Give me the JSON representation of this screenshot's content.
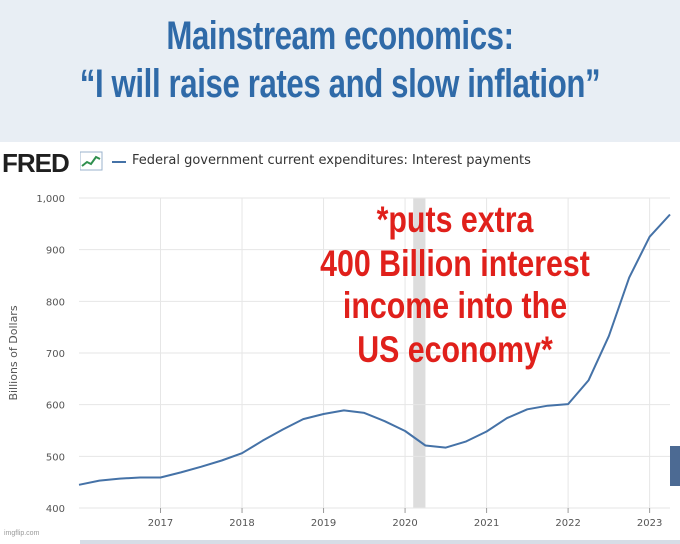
{
  "meme": {
    "line1": "Mainstream economics:",
    "line2": "“I will raise rates and slow inflation”",
    "overlay": [
      "*puts extra",
      "400 Billion interest",
      "income into the",
      "US economy*"
    ],
    "overlay_color": "#e0201b",
    "title_color": "#2f6aa8",
    "watermark": "imgflip.com"
  },
  "fred": {
    "logo": "FRED",
    "legend": "Federal government current expenditures: Interest payments"
  },
  "chart_data": {
    "type": "line",
    "ylabel": "Billions of Dollars",
    "ylim": [
      400,
      1000
    ],
    "yticks": [
      400,
      500,
      600,
      700,
      800,
      900,
      1000
    ],
    "ytick_labels": [
      "400",
      "500",
      "600",
      "700",
      "800",
      "900",
      "1,000"
    ],
    "xlim": [
      2016.0,
      2023.25
    ],
    "xticks": [
      2017,
      2018,
      2019,
      2020,
      2021,
      2022,
      2023
    ],
    "xtick_labels": [
      "2017",
      "2018",
      "2019",
      "2020",
      "2021",
      "2022",
      "2023"
    ],
    "grid": true,
    "line_color": "#4572a7",
    "recession": [
      2020.1,
      2020.25
    ],
    "series": [
      {
        "name": "Federal government current expenditures: Interest payments",
        "x": [
          2016.0,
          2016.25,
          2016.5,
          2016.75,
          2017.0,
          2017.25,
          2017.5,
          2017.75,
          2018.0,
          2018.25,
          2018.5,
          2018.75,
          2019.0,
          2019.25,
          2019.5,
          2019.75,
          2020.0,
          2020.25,
          2020.5,
          2020.75,
          2021.0,
          2021.25,
          2021.5,
          2021.75,
          2022.0,
          2022.25,
          2022.5,
          2022.75,
          2023.0,
          2023.25
        ],
        "y": [
          445,
          453,
          457,
          459,
          459,
          469,
          480,
          492,
          506,
          530,
          552,
          572,
          582,
          589,
          584,
          568,
          549,
          521,
          517,
          529,
          548,
          574,
          591,
          598,
          601,
          647,
          733,
          846,
          925,
          968
        ]
      }
    ]
  }
}
